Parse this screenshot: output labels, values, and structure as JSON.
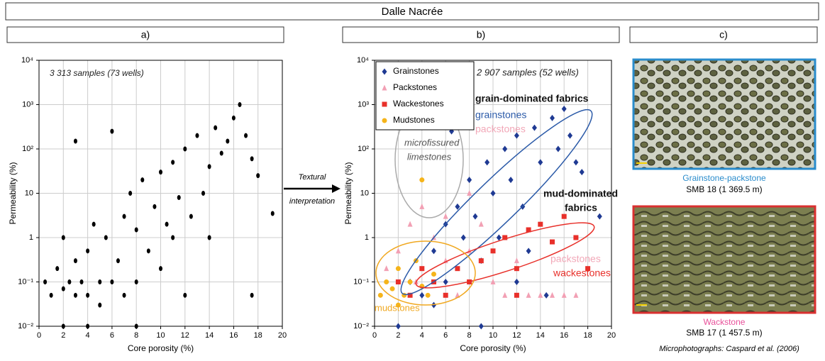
{
  "title": "Dalle Nacrée",
  "panels": [
    "a)",
    "b)",
    "c)"
  ],
  "arrow": [
    "Textural",
    "interpretation"
  ],
  "photos": [
    {
      "caption": "Grainstone-packstone",
      "sample": "SMB 18 (1 369.5 m)"
    },
    {
      "caption": "Wackstone",
      "sample": "SMB 17 (1 457.5 m)"
    }
  ],
  "credit": "Microphotographs: Caspard et al. (2006)",
  "chart_data": [
    {
      "type": "scatter",
      "xlabel": "Core porosity (%)",
      "ylabel": "Permeability (%)",
      "log_y": true,
      "grid": true,
      "xlim": [
        0,
        20
      ],
      "xticks": [
        0,
        2,
        4,
        6,
        8,
        10,
        12,
        14,
        16,
        18,
        20
      ],
      "ylim": [
        0.01,
        10000
      ],
      "yticks": [
        {
          "value": 0.01,
          "label": "10⁻²"
        },
        {
          "value": 0.1,
          "label": "10⁻¹"
        },
        1,
        10,
        {
          "value": 100,
          "label": "10²"
        },
        {
          "value": 1000,
          "label": "10³"
        },
        {
          "value": 10000,
          "label": "10⁴"
        }
      ],
      "annotations": [
        "3 313 samples (73 wells)"
      ],
      "series": [
        {
          "color": "#000000",
          "marker": "ellipse",
          "x": [
            0.5,
            1,
            1.5,
            2,
            2,
            2.5,
            3,
            3,
            3.5,
            3,
            4,
            4,
            4.5,
            5,
            5,
            5.5,
            6,
            6,
            6.5,
            7,
            7,
            7.5,
            8,
            8,
            8.5,
            9,
            9.5,
            10,
            10,
            10.5,
            11,
            11,
            11.5,
            12,
            12,
            12.5,
            13,
            13.5,
            14,
            14,
            14.5,
            15,
            15.5,
            16,
            16.5,
            17,
            17.5,
            18,
            19.2,
            17.5,
            4,
            8,
            2
          ],
          "values": [
            0.1,
            0.05,
            0.2,
            0.07,
            1,
            0.1,
            0.05,
            0.3,
            0.1,
            150,
            0.05,
            0.5,
            2,
            0.1,
            0.03,
            1,
            250,
            0.1,
            0.3,
            3,
            0.05,
            10,
            0.1,
            1.5,
            20,
            0.5,
            5,
            0.2,
            30,
            2,
            1,
            50,
            8,
            0.05,
            100,
            3,
            200,
            10,
            1,
            40,
            300,
            80,
            150,
            500,
            1000,
            200,
            60,
            25,
            3.5,
            0.05,
            0.01,
            0.01,
            0.01
          ]
        }
      ]
    },
    {
      "type": "scatter",
      "xlabel": "Core porosity (%)",
      "ylabel": "Permeability (%)",
      "log_y": true,
      "grid": true,
      "xlim": [
        0,
        20
      ],
      "xticks": [
        0,
        2,
        4,
        6,
        8,
        10,
        12,
        14,
        16,
        18,
        20
      ],
      "ylim": [
        0.01,
        10000
      ],
      "yticks": [
        {
          "value": 0.01,
          "label": "10⁻²"
        },
        {
          "value": 0.1,
          "label": "10⁻¹"
        },
        1,
        10,
        {
          "value": 100,
          "label": "10²"
        },
        {
          "value": 1000,
          "label": "10³"
        },
        {
          "value": 10000,
          "label": "10⁴"
        }
      ],
      "legend": "upper left",
      "annotations": [
        "2 907 samples (52 wells)",
        "grain-dominated fabrics",
        "grainstones",
        "packstones",
        "microfissured",
        "limestones",
        "mud-dominated",
        "fabrics",
        "packstones",
        "wackestones",
        "mudstones"
      ],
      "series": [
        {
          "name": "Grainstones",
          "color": "#1f3a93",
          "marker": "diamond",
          "x": [
            3,
            4,
            5,
            6,
            6,
            7,
            7.5,
            8,
            8.5,
            9,
            9.5,
            10,
            10.5,
            11,
            11.5,
            12,
            12.5,
            13,
            13.5,
            14,
            14.5,
            15,
            15.5,
            16,
            16.5,
            17,
            17.5,
            19,
            6.5,
            5,
            2,
            9,
            12
          ],
          "values": [
            0.1,
            0.05,
            0.5,
            2,
            0.1,
            5,
            1,
            20,
            3,
            0.3,
            50,
            10,
            1,
            100,
            20,
            200,
            5,
            0.5,
            300,
            50,
            0.05,
            500,
            100,
            800,
            200,
            50,
            30,
            3,
            250,
            0.03,
            0.01,
            0.01,
            0.1
          ]
        },
        {
          "name": "Packstones",
          "color": "#f2a0b4",
          "marker": "triangle",
          "x": [
            1,
            2,
            3,
            3.5,
            4,
            5,
            6,
            7,
            8,
            9,
            10,
            11,
            12,
            13,
            14,
            15,
            16,
            17,
            8,
            6
          ],
          "values": [
            0.2,
            0.5,
            2,
            0.1,
            5,
            1,
            0.3,
            0.05,
            0.5,
            2,
            0.1,
            0.05,
            0.3,
            0.05,
            0.05,
            0.05,
            0.05,
            0.05,
            10,
            3
          ]
        },
        {
          "name": "Wackestones",
          "color": "#e8302a",
          "marker": "square",
          "x": [
            2,
            3,
            4,
            5,
            6,
            7,
            8,
            9,
            10,
            11,
            12,
            13,
            14,
            15,
            16,
            17,
            18,
            12
          ],
          "values": [
            0.1,
            0.05,
            0.2,
            0.1,
            0.05,
            0.2,
            0.1,
            0.3,
            0.5,
            1,
            0.2,
            1.5,
            2,
            0.8,
            3,
            1,
            0.2,
            0.05
          ]
        },
        {
          "name": "Mudstones",
          "color": "#f5b41a",
          "marker": "circle",
          "x": [
            0.5,
            1,
            1.5,
            2,
            2.5,
            3,
            3.5,
            4,
            4.5,
            5,
            4,
            2
          ],
          "values": [
            0.05,
            0.1,
            0.07,
            0.2,
            0.05,
            0.1,
            0.3,
            0.08,
            0.05,
            0.15,
            20,
            0.03
          ]
        }
      ]
    }
  ]
}
